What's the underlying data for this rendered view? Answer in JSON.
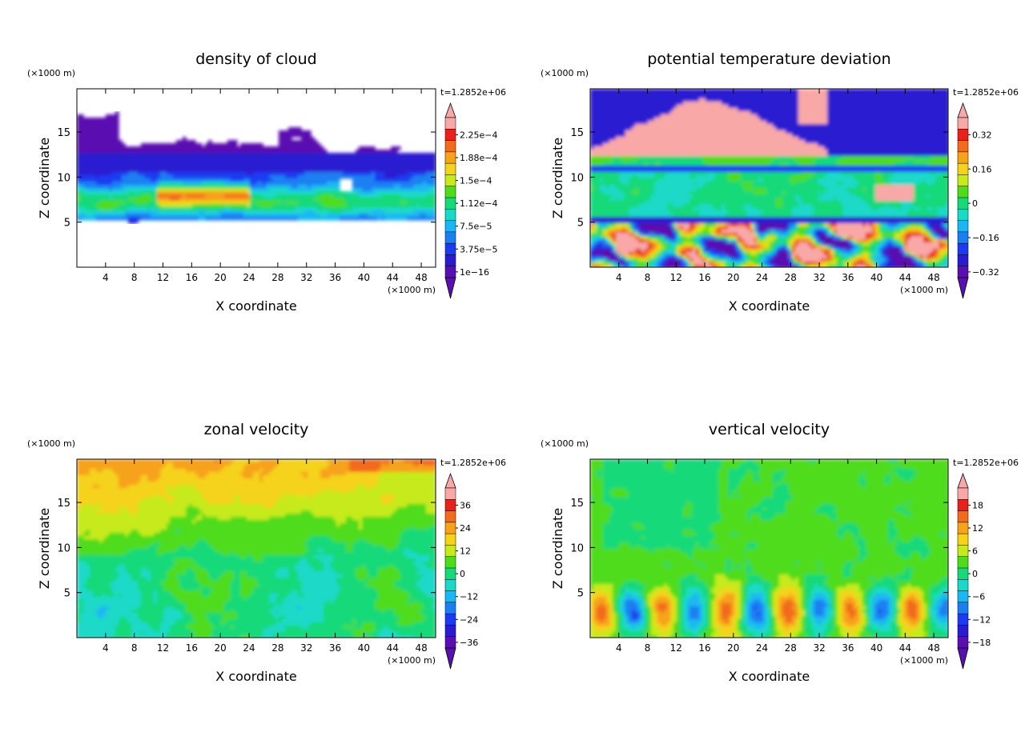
{
  "chart_data": [
    {
      "type": "heatmap",
      "title": "density of cloud",
      "xlabel": "X coordinate",
      "ylabel": "Z coordinate",
      "x_unit": "(×1000 m)",
      "y_unit": "(×1000 m)",
      "time_label": "t=1.2852e+06",
      "xlim": [
        0,
        50
      ],
      "ylim": [
        0,
        19.8
      ],
      "x_ticks": [
        4,
        8,
        12,
        16,
        20,
        24,
        28,
        32,
        36,
        40,
        44,
        48
      ],
      "y_ticks": [
        5,
        10,
        15
      ],
      "legend_labels": [
        "2.25e−4",
        "1.88e−4",
        "1.5e−4",
        "1.12e−4",
        "7.5e−5",
        "3.75e−5",
        "1e−16"
      ],
      "colors": [
        "#f9a8a8",
        "#e8211b",
        "#f26a1b",
        "#f7a21b",
        "#f5d21b",
        "#c6ea1b",
        "#4fdc1b",
        "#18d97a",
        "#1bd9c8",
        "#1ab8f2",
        "#1b7ff2",
        "#1b3af2",
        "#2a1bd0",
        "#5a0fb0"
      ]
    },
    {
      "type": "heatmap",
      "title": "potential temperature deviation",
      "xlabel": "X coordinate",
      "ylabel": "Z coordinate",
      "x_unit": "(×1000 m)",
      "y_unit": "(×1000 m)",
      "time_label": "t=1.2852e+06",
      "xlim": [
        0,
        50
      ],
      "ylim": [
        0,
        19.8
      ],
      "x_ticks": [
        4,
        8,
        12,
        16,
        20,
        24,
        28,
        32,
        36,
        40,
        44,
        48
      ],
      "y_ticks": [
        5,
        10,
        15
      ],
      "legend_labels": [
        "0.32",
        "0.16",
        "0",
        "−0.16",
        "−0.32"
      ],
      "colors": [
        "#f9a8a8",
        "#e8211b",
        "#f26a1b",
        "#f7a21b",
        "#f5d21b",
        "#c6ea1b",
        "#4fdc1b",
        "#18d97a",
        "#1bd9c8",
        "#1ab8f2",
        "#1b7ff2",
        "#1b3af2",
        "#2a1bd0",
        "#5a0fb0"
      ]
    },
    {
      "type": "heatmap",
      "title": "zonal velocity",
      "xlabel": "X coordinate",
      "ylabel": "Z coordinate",
      "x_unit": "(×1000 m)",
      "y_unit": "(×1000 m)",
      "time_label": "t=1.2852e+06",
      "xlim": [
        0,
        50
      ],
      "ylim": [
        0,
        19.8
      ],
      "x_ticks": [
        4,
        8,
        12,
        16,
        20,
        24,
        28,
        32,
        36,
        40,
        44,
        48
      ],
      "y_ticks": [
        5,
        10,
        15
      ],
      "legend_labels": [
        "36",
        "24",
        "12",
        "0",
        "−12",
        "−24",
        "−36"
      ],
      "colors": [
        "#f9a8a8",
        "#e8211b",
        "#f26a1b",
        "#f7a21b",
        "#f5d21b",
        "#c6ea1b",
        "#4fdc1b",
        "#18d97a",
        "#1bd9c8",
        "#1ab8f2",
        "#1b7ff2",
        "#1b3af2",
        "#2a1bd0",
        "#5a0fb0"
      ]
    },
    {
      "type": "heatmap",
      "title": "vertical velocity",
      "xlabel": "X coordinate",
      "ylabel": "Z coordinate",
      "x_unit": "(×1000 m)",
      "y_unit": "(×1000 m)",
      "time_label": "t=1.2852e+06",
      "xlim": [
        0,
        50
      ],
      "ylim": [
        0,
        19.8
      ],
      "x_ticks": [
        4,
        8,
        12,
        16,
        20,
        24,
        28,
        32,
        36,
        40,
        44,
        48
      ],
      "y_ticks": [
        5,
        10,
        15
      ],
      "legend_labels": [
        "18",
        "12",
        "6",
        "0",
        "−6",
        "−12",
        "−18"
      ],
      "colors": [
        "#f9a8a8",
        "#e8211b",
        "#f26a1b",
        "#f7a21b",
        "#f5d21b",
        "#c6ea1b",
        "#4fdc1b",
        "#18d97a",
        "#1bd9c8",
        "#1ab8f2",
        "#1b7ff2",
        "#1b3af2",
        "#2a1bd0",
        "#5a0fb0"
      ]
    }
  ]
}
